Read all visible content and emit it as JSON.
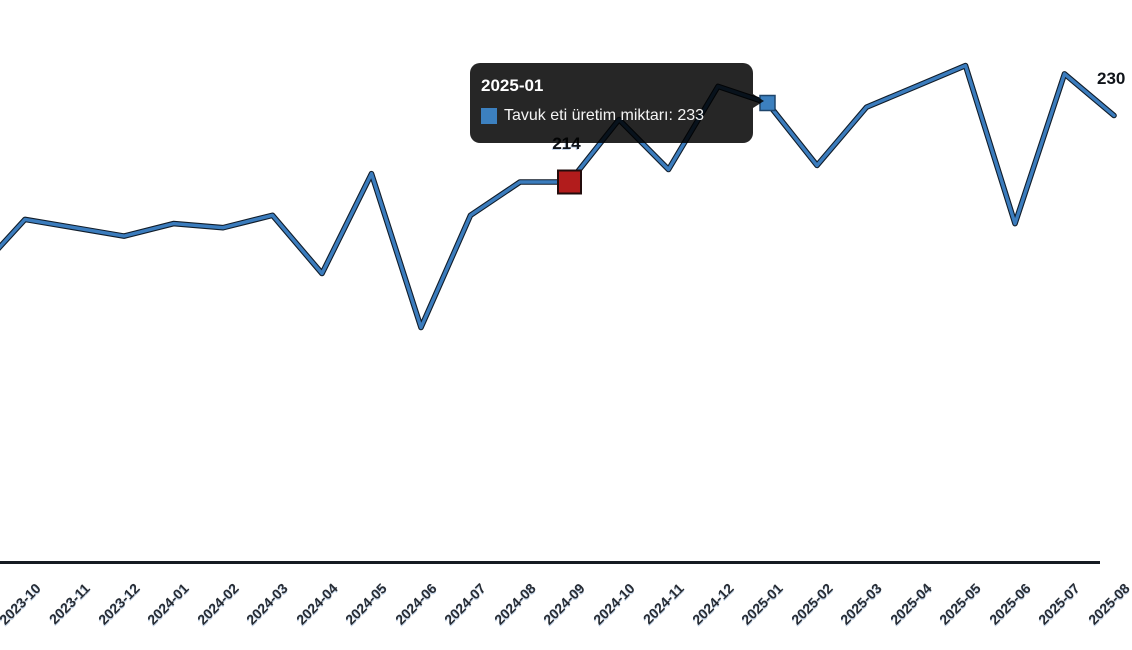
{
  "chart_data": {
    "type": "line",
    "title": "",
    "xlabel": "",
    "ylabel": "",
    "grid": "off",
    "legend": "none",
    "y_axis_visible": false,
    "x_tick_rotation_deg": -45,
    "series": [
      {
        "name": "Tavuk eti üretim miktarı",
        "color": "#3b7cbd",
        "categories": [
          "2023-10",
          "2023-11",
          "2023-12",
          "2024-01",
          "2024-02",
          "2024-03",
          "2024-04",
          "2024-05",
          "2024-06",
          "2024-07",
          "2024-08",
          "2024-09",
          "2024-10",
          "2024-11",
          "2024-12",
          "2025-01",
          "2025-02",
          "2025-03",
          "2025-04",
          "2025-05",
          "2025-06",
          "2025-07",
          "2025-08"
        ],
        "values": [
          205,
          203,
          201,
          204,
          203,
          206,
          192,
          216,
          179,
          206,
          214,
          214,
          229,
          217,
          237,
          233,
          218,
          232,
          237,
          242,
          204,
          240,
          230
        ]
      }
    ],
    "offscreen_lead_in_value": 192,
    "highlighted_point": {
      "category": "2024-09",
      "value": 214,
      "data_label": "214",
      "marker_color": "#b21c1c"
    },
    "hovered_point": {
      "category": "2025-01",
      "value": 233,
      "marker_color": "#3c80bf"
    },
    "edge_label_fragment": "230"
  },
  "tooltip": {
    "title": "2025-01",
    "series_name": "Tavuk eti üretim miktarı",
    "value": "233",
    "text": "Tavuk eti üretim miktarı: 233",
    "bg_color": "rgba(0,0,0,0.85)",
    "swatch_color": "#3c80bf"
  },
  "colors": {
    "background": "#ffffff",
    "line": "#3b7cbd",
    "line_outline": "#101c29",
    "axis_line": "#161b22",
    "tick_label": "#262b33",
    "point_label": "#10141a"
  }
}
